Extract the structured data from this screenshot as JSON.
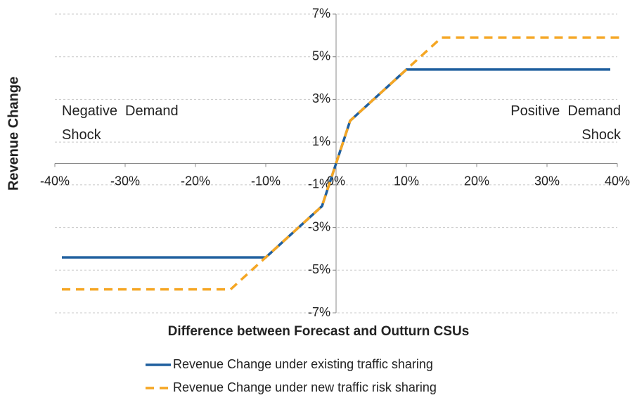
{
  "chart_data": {
    "type": "line",
    "x_label": "Difference between Forecast and Outturn CSUs",
    "y_label": "Revenue Change",
    "xlim": [
      -40,
      40
    ],
    "ylim": [
      -7,
      7
    ],
    "xticks": [
      {
        "value": -40,
        "label": "-40%"
      },
      {
        "value": -30,
        "label": "-30%"
      },
      {
        "value": -20,
        "label": "-20%"
      },
      {
        "value": -10,
        "label": "-10%"
      },
      {
        "value": 0,
        "label": "0%"
      },
      {
        "value": 10,
        "label": "10%"
      },
      {
        "value": 20,
        "label": "20%"
      },
      {
        "value": 30,
        "label": "30%"
      },
      {
        "value": 40,
        "label": "40%"
      }
    ],
    "yticks": [
      {
        "value": 7,
        "label": "7%"
      },
      {
        "value": 5,
        "label": "5%"
      },
      {
        "value": 3,
        "label": "3%"
      },
      {
        "value": 1,
        "label": "1%"
      },
      {
        "value": -1,
        "label": "-1%"
      },
      {
        "value": -3,
        "label": "-3%"
      },
      {
        "value": -5,
        "label": "-5%"
      },
      {
        "value": -7,
        "label": "-7%"
      }
    ],
    "grid": true,
    "annotations": [
      {
        "lines": [
          "Negative  Demand",
          "Shock"
        ],
        "x": -39,
        "y": 1.5,
        "anchor": "start"
      },
      {
        "lines": [
          "Positive  Demand",
          "Shock"
        ],
        "x": 40.5,
        "y": 1.5,
        "anchor": "end"
      }
    ],
    "series": [
      {
        "name": "Revenue Change under existing traffic sharing",
        "color": "#1f5f9e",
        "dash": false,
        "x": [
          -39,
          -10,
          -2,
          0,
          2,
          10,
          39
        ],
        "values": [
          -4.4,
          -4.4,
          -2,
          0,
          2,
          4.4,
          4.4
        ]
      },
      {
        "name": "Revenue Change under new traffic risk sharing",
        "color": "#f5a623",
        "dash": true,
        "x": [
          -39,
          -15,
          -2,
          0,
          2,
          15,
          41
        ],
        "values": [
          -5.9,
          -5.9,
          -2,
          0,
          2,
          5.9,
          5.9
        ]
      }
    ]
  }
}
